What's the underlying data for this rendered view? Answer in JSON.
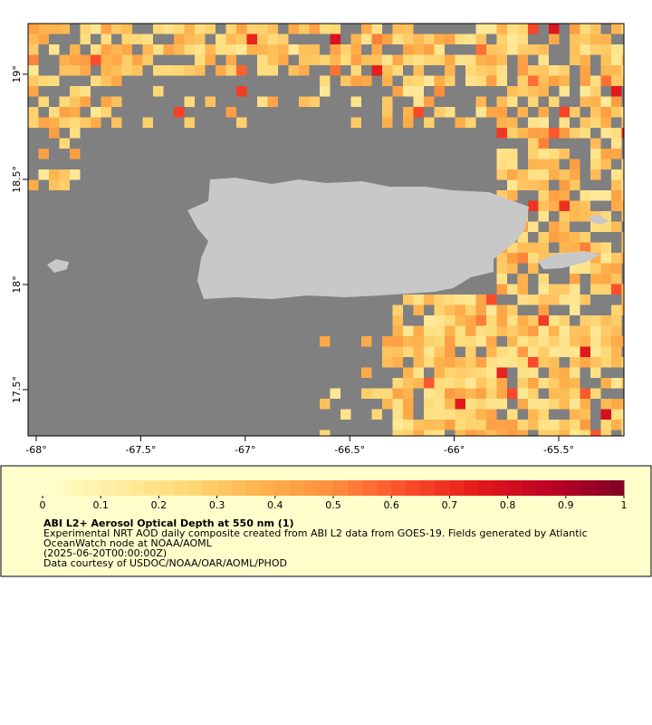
{
  "map": {
    "xlim": [
      -68.039,
      -65.188
    ],
    "ylim": [
      17.28,
      19.241
    ],
    "xticks": [
      {
        "value": -68,
        "label": "-68°"
      },
      {
        "value": -67.5,
        "label": "-67.5°"
      },
      {
        "value": -67,
        "label": "-67°"
      },
      {
        "value": -66.5,
        "label": "-66.5°"
      },
      {
        "value": -66,
        "label": "-66°"
      },
      {
        "value": -65.5,
        "label": "-65.5°"
      }
    ],
    "yticks": [
      {
        "value": 17.5,
        "label": "17.5°"
      },
      {
        "value": 18,
        "label": "18°"
      },
      {
        "value": 18.5,
        "label": "18.5°"
      },
      {
        "value": 19,
        "label": "19°"
      }
    ],
    "ocean_color": "#808080",
    "land_color": "#c8c8c8"
  },
  "colorbar": {
    "lim": [
      0,
      1
    ],
    "ticks": [
      0,
      0.1,
      0.2,
      0.3,
      0.4,
      0.5,
      0.6,
      0.7,
      0.8,
      0.9,
      1
    ],
    "colors": [
      "#ffffcc",
      "#ffeda0",
      "#fed976",
      "#feb24c",
      "#fd8d3c",
      "#fc4e2a",
      "#e31a1c",
      "#bd0026",
      "#800026"
    ]
  },
  "legend": {
    "title": "ABI L2+ Aerosol Optical Depth at 550 nm (1)",
    "lines": [
      "Experimental NRT AOD daily composite created from ABI L2 data from GOES-19. Fields generated by Atlantic",
      "OceanWatch node at NOAA/AOML",
      "(2025-06-20T00:00:00Z)",
      "Data courtesy of USDOC/NOAA/OAR/AOML/PHOD"
    ]
  }
}
